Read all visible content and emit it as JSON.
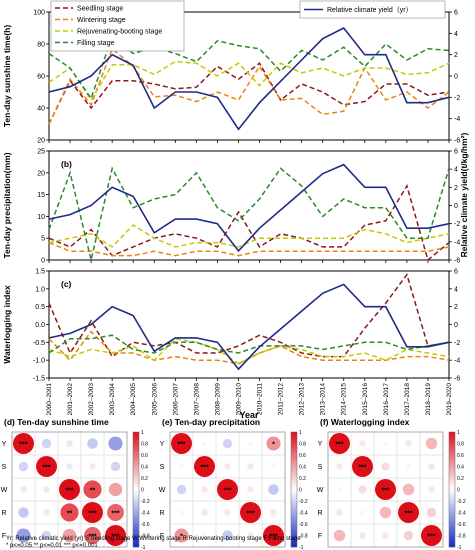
{
  "chart_data": [
    {
      "type": "line",
      "panel": "(a)",
      "ylabel": "Ten-day sunshine time(h)",
      "ylim": [
        20,
        100
      ],
      "yticks": [
        20,
        40,
        60,
        80,
        100
      ],
      "y2label": "Relative climate yield(t/kg/hm²)",
      "y2lim": [
        -6,
        6
      ],
      "y2ticks": [
        -6,
        -4,
        -2,
        0,
        2,
        4,
        6
      ],
      "x": [
        "2000–2001",
        "2001–2002",
        "2002–2003",
        "2003–2004",
        "2004–2005",
        "2005–2006",
        "2006–2007",
        "2007–2008",
        "2008–2009",
        "2009–2010",
        "2010–2011",
        "2011–2012",
        "2012–2013",
        "2013–2014",
        "2014–2015",
        "2015–2016",
        "2016–2017",
        "2017–2018",
        "2018–2019",
        "2019–2020"
      ],
      "series": [
        {
          "name": "Seedling stage",
          "color": "#8b1a1a",
          "dash": "5,3",
          "values": [
            30,
            57,
            40,
            57,
            57,
            55,
            52,
            53,
            66,
            58,
            68,
            45,
            55,
            50,
            42,
            44,
            55,
            55,
            48,
            50
          ]
        },
        {
          "name": "Wintering stage",
          "color": "#e8870e",
          "dash": "5,3",
          "values": [
            30,
            58,
            42,
            77,
            66,
            47,
            48,
            44,
            50,
            45,
            66,
            45,
            46,
            36,
            38,
            65,
            45,
            50,
            40,
            50
          ]
        },
        {
          "name": "Rejuvenating-booting stage",
          "color": "#c8c800",
          "dash": "5,3",
          "values": [
            56,
            65,
            45,
            67,
            67,
            61,
            69,
            68,
            60,
            68,
            54,
            68,
            62,
            65,
            60,
            65,
            65,
            61,
            62,
            68
          ]
        },
        {
          "name": "Filling stage",
          "color": "#2a8a2a",
          "dash": "5,3",
          "values": [
            74,
            65,
            46,
            85,
            74,
            78,
            74,
            69,
            82,
            79,
            77,
            63,
            76,
            70,
            78,
            66,
            80,
            70,
            77,
            76
          ]
        }
      ],
      "y2series": {
        "name": "Relative climate yield (yr)",
        "color": "#1f2a8a",
        "values": [
          -1.5,
          -1.0,
          0.0,
          2.0,
          1.0,
          -3.0,
          -1.5,
          -1.5,
          -2.0,
          -5.0,
          -2.5,
          -0.5,
          1.5,
          3.5,
          4.5,
          2.0,
          2.0,
          -2.5,
          -2.5,
          -2.0
        ]
      }
    },
    {
      "type": "line",
      "panel": "(b)",
      "ylabel": "Ten-day precipitation(mm)",
      "ylim": [
        0,
        25
      ],
      "yticks": [
        0,
        5,
        10,
        15,
        20,
        25
      ],
      "y2ticks": [
        -6,
        -4,
        -2,
        0,
        2,
        4,
        6
      ],
      "y2lim": [
        -6,
        6
      ],
      "x": [
        "2000–2001",
        "2001–2002",
        "2002–2003",
        "2003–2004",
        "2004–2005",
        "2005–2006",
        "2006–2007",
        "2007–2008",
        "2008–2009",
        "2009–2010",
        "2010–2011",
        "2011–2012",
        "2012–2013",
        "2013–2014",
        "2014–2015",
        "2015–2016",
        "2016–2017",
        "2017–2018",
        "2018–2019",
        "2019–2020"
      ],
      "series": [
        {
          "name": "Seedling stage",
          "color": "#8b1a1a",
          "dash": "5,3",
          "values": [
            5,
            3,
            7,
            1,
            3,
            5,
            6,
            5,
            3,
            11,
            3,
            6,
            5,
            3,
            3,
            8,
            9,
            17,
            0,
            4
          ]
        },
        {
          "name": "Wintering stage",
          "color": "#e8870e",
          "dash": "5,3",
          "values": [
            4,
            2,
            2,
            1,
            1,
            2,
            1,
            2,
            2,
            1,
            2,
            2,
            2,
            2,
            2,
            2,
            2,
            2,
            2,
            3
          ]
        },
        {
          "name": "Rejuvenating-booting stage",
          "color": "#c8c800",
          "dash": "5,3",
          "values": [
            4,
            5,
            6,
            3,
            8,
            5,
            3,
            4,
            4,
            3,
            5,
            5,
            5,
            5,
            5,
            7,
            6,
            4,
            5,
            6
          ]
        },
        {
          "name": "Filling stage",
          "color": "#2a8a2a",
          "dash": "5,3",
          "values": [
            7,
            20,
            0,
            21,
            12,
            14,
            15,
            20,
            12,
            9,
            14,
            21,
            17,
            10,
            14,
            12,
            12,
            5,
            5,
            21
          ]
        }
      ],
      "y2series": {
        "name": "Relative climate yield (yr)",
        "color": "#1f2a8a",
        "values": [
          -1.5,
          -1.0,
          0.0,
          2.0,
          1.0,
          -3.0,
          -1.5,
          -1.5,
          -2.0,
          -5.0,
          -2.5,
          -0.5,
          1.5,
          3.5,
          4.5,
          2.0,
          2.0,
          -2.5,
          -2.5,
          -2.0
        ]
      }
    },
    {
      "type": "line",
      "panel": "(c)",
      "ylabel": "Waterlogging index",
      "ylim": [
        -1.5,
        1.5
      ],
      "yticks": [
        -1.5,
        -1.0,
        -0.5,
        0.0,
        0.5,
        1.0,
        1.5
      ],
      "y2ticks": [
        -6,
        -4,
        -2,
        0,
        2,
        4,
        6
      ],
      "y2lim": [
        -6,
        6
      ],
      "x": [
        "2000–2001",
        "2001–2002",
        "2002–2003",
        "2003–2004",
        "2004–2005",
        "2005–2006",
        "2006–2007",
        "2007–2008",
        "2008–2009",
        "2009–2010",
        "2010–2011",
        "2011–2012",
        "2012–2013",
        "2013–2014",
        "2014–2015",
        "2015–2016",
        "2016–2017",
        "2017–2018",
        "2018–2019",
        "2019–2020"
      ],
      "series": [
        {
          "name": "Seedling stage",
          "color": "#8b1a1a",
          "dash": "5,3",
          "values": [
            0.6,
            -0.8,
            0.1,
            -0.9,
            -0.5,
            -0.6,
            -0.5,
            -0.8,
            -0.8,
            -0.6,
            -0.3,
            -0.5,
            -0.8,
            -0.9,
            -0.9,
            -0.1,
            0.6,
            1.4,
            -0.6,
            -0.5
          ]
        },
        {
          "name": "Wintering stage",
          "color": "#e8870e",
          "dash": "5,3",
          "values": [
            -0.4,
            -1.0,
            -0.2,
            -0.8,
            -0.8,
            -1.0,
            -0.9,
            -1.0,
            -1.0,
            -1.1,
            -0.8,
            -0.6,
            -0.9,
            -1.0,
            -1.0,
            -1.0,
            -1.0,
            -0.9,
            -0.9,
            -1.0
          ]
        },
        {
          "name": "Rejuvenating-booting stage",
          "color": "#c8c800",
          "dash": "5,3",
          "values": [
            -0.7,
            -0.9,
            -0.7,
            -0.8,
            -0.6,
            -1.0,
            -0.4,
            -0.5,
            -0.7,
            -1.1,
            -0.8,
            -0.6,
            -0.7,
            -0.9,
            -0.9,
            -0.8,
            -1.0,
            -0.7,
            -0.8,
            -0.9
          ]
        },
        {
          "name": "Filling stage",
          "color": "#2a8a2a",
          "dash": "5,3",
          "values": [
            -0.8,
            -0.4,
            -0.4,
            -0.3,
            -0.7,
            -0.8,
            -0.5,
            -0.5,
            -0.7,
            -0.8,
            -0.6,
            -0.6,
            -0.6,
            -0.7,
            -0.6,
            -0.5,
            -0.5,
            -0.7,
            -0.6,
            -0.5
          ]
        }
      ],
      "y2series": {
        "name": "Relative climate yield (yr)",
        "color": "#1f2a8a",
        "values": [
          -1.5,
          -1.0,
          0.0,
          2.0,
          1.0,
          -3.0,
          -1.5,
          -1.5,
          -2.0,
          -5.0,
          -2.5,
          -0.5,
          1.5,
          3.5,
          4.5,
          2.0,
          2.0,
          -2.5,
          -2.5,
          -2.0
        ]
      }
    },
    {
      "type": "heatmap",
      "panel": "(d)",
      "title": "(d) Ten-day sunshine time",
      "labels": [
        "Y",
        "S",
        "W",
        "R",
        "F"
      ],
      "colorbar_ticks": [
        1,
        0.8,
        0.6,
        0.4,
        0.2,
        0,
        -0.2,
        -0.4,
        -0.6,
        -0.8,
        -1
      ],
      "values": [
        [
          1,
          -0.2,
          -0.1,
          -0.25,
          -0.45
        ],
        [
          -0.2,
          1,
          -0.1,
          0.1,
          -0.2
        ],
        [
          -0.1,
          -0.1,
          1,
          0.75,
          0.4
        ],
        [
          -0.25,
          0.1,
          0.75,
          1,
          0.65
        ],
        [
          -0.45,
          -0.2,
          0.4,
          0.65,
          1
        ]
      ],
      "stars": [
        [
          "***",
          "",
          "",
          "",
          ""
        ],
        [
          "",
          "***",
          "",
          "",
          ""
        ],
        [
          "",
          "",
          "***",
          "**",
          ""
        ],
        [
          "",
          "",
          "**",
          "***",
          "***"
        ],
        [
          "",
          "",
          "",
          "***",
          "***"
        ]
      ]
    },
    {
      "type": "heatmap",
      "panel": "(e)",
      "title": "(e) Ten-day precipitation",
      "labels": [
        "Y",
        "S",
        "W",
        "R",
        "F"
      ],
      "colorbar_ticks": [
        1,
        0.8,
        0.6,
        0.4,
        0.2,
        0,
        -0.2,
        -0.4,
        -0.6,
        -0.8,
        -1
      ],
      "values": [
        [
          1,
          0.05,
          -0.2,
          0.05,
          0.45
        ],
        [
          0.05,
          1,
          0.1,
          -0.1,
          0.05
        ],
        [
          -0.2,
          0.1,
          1,
          0.1,
          -0.25
        ],
        [
          0.05,
          -0.1,
          0.1,
          1,
          0.1
        ],
        [
          0.45,
          0.05,
          -0.25,
          0.1,
          1
        ]
      ],
      "stars": [
        [
          "***",
          "",
          "",
          "",
          "*"
        ],
        [
          "",
          "***",
          "",
          "",
          ""
        ],
        [
          "",
          "",
          "***",
          "",
          ""
        ],
        [
          "",
          "",
          "",
          "***",
          ""
        ],
        [
          "*",
          "",
          "",
          "",
          "***"
        ]
      ]
    },
    {
      "type": "heatmap",
      "panel": "(f)",
      "title": "(f) Waterlogging index",
      "labels": [
        "Y",
        "S",
        "W",
        "R",
        "F"
      ],
      "colorbar_ticks": [
        1,
        0.8,
        0.6,
        0.4,
        0.2,
        0,
        -0.2,
        -0.4,
        -0.6,
        -0.8,
        -1
      ],
      "values": [
        [
          1,
          0.1,
          0.05,
          -0.1,
          0.3
        ],
        [
          0.1,
          1,
          0.15,
          0.05,
          -0.1
        ],
        [
          0.05,
          0.15,
          1,
          0.3,
          0.1
        ],
        [
          -0.1,
          0.05,
          0.3,
          1,
          0.2
        ],
        [
          0.3,
          -0.1,
          0.1,
          0.2,
          1
        ]
      ],
      "stars": [
        [
          "***",
          "",
          "",
          "",
          ""
        ],
        [
          "",
          "***",
          "",
          "",
          ""
        ],
        [
          "",
          "",
          "***",
          "",
          ""
        ],
        [
          "",
          "",
          "",
          "***",
          ""
        ],
        [
          "",
          "",
          "",
          "",
          "***"
        ]
      ]
    }
  ],
  "xlabel": "Year",
  "y2label": "Relative climate yield(t/kg/hm²)",
  "legend": {
    "items": [
      "Seedling stage",
      "Wintering stage",
      "Rejuvenating-booting stage",
      "Filling stage"
    ],
    "yield_label": "Relative climate yield（yr）"
  },
  "footnote": {
    "line1": "Yr: Relative climatic yield (yr)     S:Seedling stage          W:Wintering stage       R:Rejuvenating-booting stage       F:Filling stage",
    "line2": "* p<=0.05  ** p<=0.01  *** p<=0.001"
  }
}
